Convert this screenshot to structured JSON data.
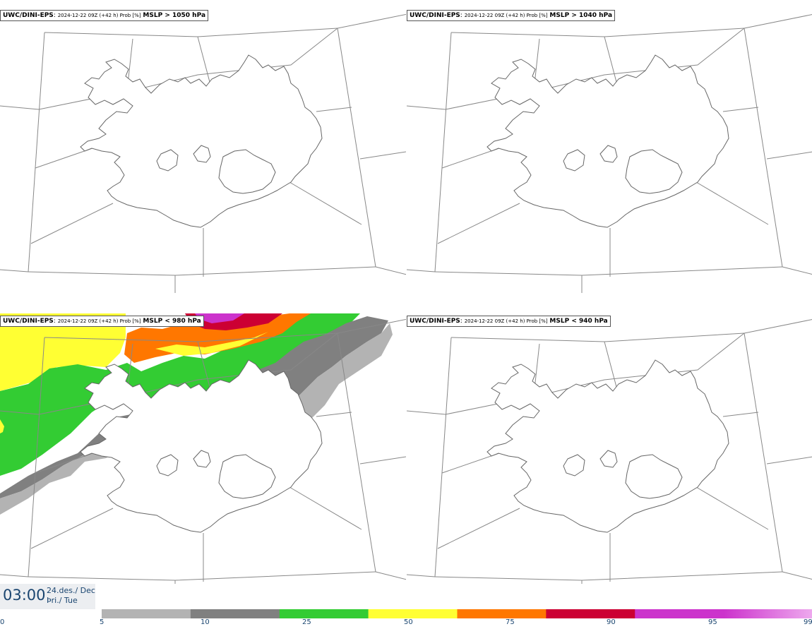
{
  "panels": [
    {
      "model": "UWC/DINI-EPS",
      "run": "2024-12-22 09Z (+42 h) Prob [%]",
      "field": "MSLP > 1050 hPa"
    },
    {
      "model": "UWC/DINI-EPS",
      "run": "2024-12-22 09Z (+42 h) Prob [%]",
      "field": "MSLP > 1040 hPa"
    },
    {
      "model": "UWC/DINI-EPS",
      "run": "2024-12-22 09Z (+42 h) Prob [%]",
      "field": "MSLP < 980 hPa"
    },
    {
      "model": "UWC/DINI-EPS",
      "run": "2024-12-22 09Z (+42 h) Prob [%]",
      "field": "MSLP < 940 hPa"
    }
  ],
  "valid": {
    "time": "03:00",
    "date_line1": "24.des./ Dec",
    "date_line2": "Þri./ Tue"
  },
  "colorbar": {
    "ticks": [
      "0",
      "5",
      "10",
      "25",
      "50",
      "75",
      "90",
      "95",
      "99"
    ],
    "colors": [
      "#b3b3b3",
      "#808080",
      "#33cc33",
      "#ffff33",
      "#ff7700",
      "#cc0033",
      "#cc33cc",
      "#eeaaee"
    ]
  }
}
